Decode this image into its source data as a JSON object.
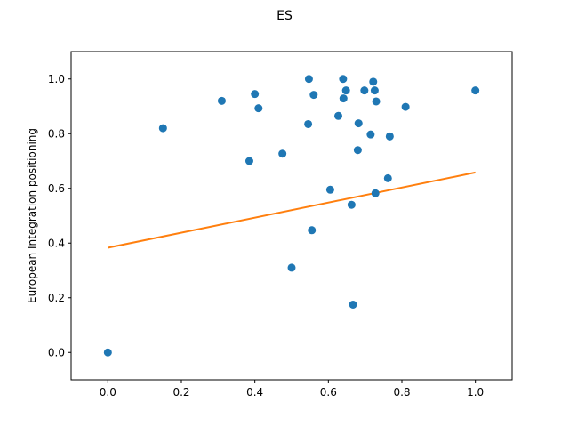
{
  "chart_data": {
    "type": "scatter",
    "title": "ES",
    "xlabel": "",
    "ylabel": "European Integration positioning",
    "xlim": [
      -0.1,
      1.1
    ],
    "ylim": [
      -0.1,
      1.1
    ],
    "xticks": [
      "0.0",
      "0.2",
      "0.4",
      "0.6",
      "0.8",
      "1.0"
    ],
    "yticks": [
      "0.0",
      "0.2",
      "0.4",
      "0.6",
      "0.8",
      "1.0"
    ],
    "grid": false,
    "series": [
      {
        "type": "scatter",
        "color": "#1f77b4",
        "points": [
          [
            0.0,
            0.0
          ],
          [
            0.15,
            0.82
          ],
          [
            0.31,
            0.92
          ],
          [
            0.385,
            0.7
          ],
          [
            0.4,
            0.945
          ],
          [
            0.41,
            0.893
          ],
          [
            0.475,
            0.727
          ],
          [
            0.5,
            0.31
          ],
          [
            0.545,
            0.835
          ],
          [
            0.547,
            1.0
          ],
          [
            0.555,
            0.447
          ],
          [
            0.56,
            0.942
          ],
          [
            0.605,
            0.595
          ],
          [
            0.627,
            0.865
          ],
          [
            0.64,
            1.0
          ],
          [
            0.641,
            0.929
          ],
          [
            0.648,
            0.958
          ],
          [
            0.663,
            0.54
          ],
          [
            0.667,
            0.175
          ],
          [
            0.68,
            0.74
          ],
          [
            0.682,
            0.838
          ],
          [
            0.698,
            0.958
          ],
          [
            0.715,
            0.797
          ],
          [
            0.722,
            0.99
          ],
          [
            0.726,
            0.958
          ],
          [
            0.728,
            0.582
          ],
          [
            0.73,
            0.918
          ],
          [
            0.762,
            0.637
          ],
          [
            0.767,
            0.79
          ],
          [
            0.81,
            0.898
          ],
          [
            1.0,
            0.958
          ]
        ]
      },
      {
        "type": "line",
        "color": "#ff7f0e",
        "points": [
          [
            0.0,
            0.383
          ],
          [
            1.0,
            0.658
          ]
        ]
      }
    ]
  }
}
